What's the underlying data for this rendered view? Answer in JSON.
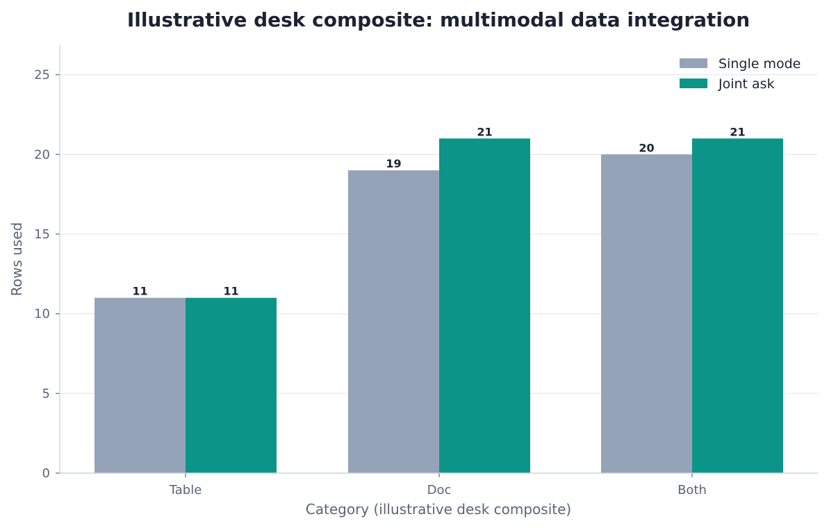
{
  "chart_data": {
    "type": "bar",
    "title": "Illustrative desk composite: multimodal data integration",
    "xlabel": "Category (illustrative desk composite)",
    "ylabel": "Rows used",
    "categories": [
      "Table",
      "Doc",
      "Both"
    ],
    "series": [
      {
        "name": "Single mode",
        "values": [
          11,
          19,
          20
        ],
        "color": "#94a3b8"
      },
      {
        "name": "Joint ask",
        "values": [
          11,
          21,
          21
        ],
        "color": "#0d9488"
      }
    ],
    "ylim": [
      0,
      26.9
    ],
    "yticks": [
      0,
      5,
      10,
      15,
      20,
      25
    ],
    "grid": "y",
    "legend": "top-right",
    "colors": {
      "grid": "#e5e7eb",
      "axis": "#cbd5e1",
      "text": "#1b2233",
      "muted_text": "#5a6477"
    }
  }
}
